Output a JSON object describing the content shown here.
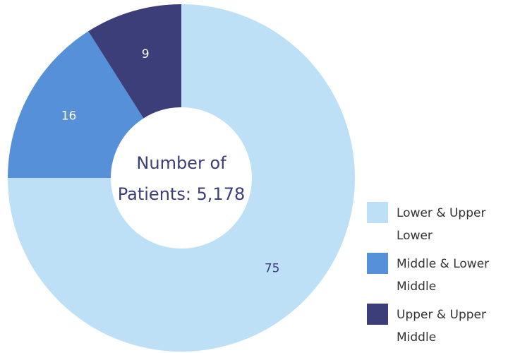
{
  "chart_data": {
    "type": "donut",
    "categories": [
      "Lower & Upper Lower",
      "Middle & Lower Middle",
      "Upper & Upper Middle"
    ],
    "values": [
      75,
      16,
      9
    ],
    "colors": [
      "#bde0f7",
      "#5590d8",
      "#3b3e78"
    ],
    "center_text": [
      "Number of",
      "Patients: 5,178"
    ],
    "legend": "bottom-right"
  }
}
